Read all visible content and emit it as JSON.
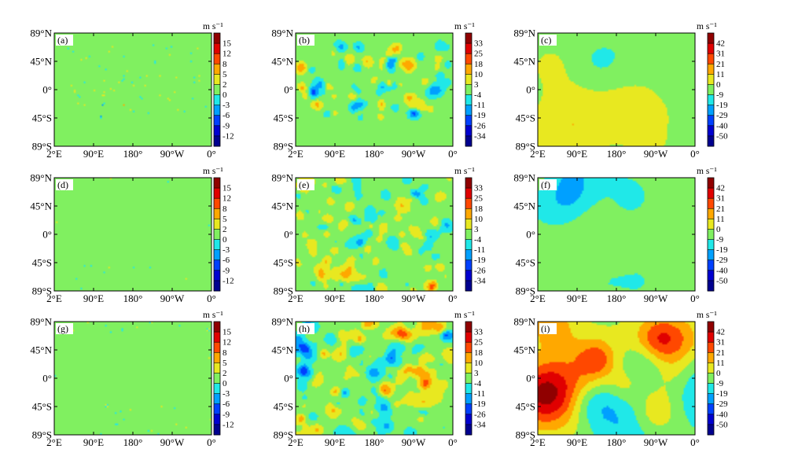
{
  "chart_data": {
    "type": "heatmap",
    "grid": false,
    "x_tick_labels": [
      "2°E",
      "90°E",
      "180°",
      "90°W",
      "0°"
    ],
    "y_tick_labels": [
      "89°N",
      "45°N",
      "0°",
      "45°S",
      "89°S"
    ],
    "colorbar_unit": "m s⁻¹",
    "colorbars": {
      "scale_a": [
        "15",
        "12",
        "8",
        "5",
        "2",
        "0",
        "-3",
        "-6",
        "-9",
        "-12"
      ],
      "scale_b": [
        "33",
        "25",
        "18",
        "10",
        "3",
        "-4",
        "-11",
        "-19",
        "-26",
        "-34"
      ],
      "scale_c": [
        "42",
        "31",
        "21",
        "11",
        "0",
        "-9",
        "-19",
        "-29",
        "-40",
        "-50"
      ]
    },
    "colormap": [
      "#00008f",
      "#0000d0",
      "#0040ff",
      "#00a0ff",
      "#20e8e8",
      "#80f060",
      "#e8e820",
      "#ffa800",
      "#ff4800",
      "#e00000",
      "#900000"
    ],
    "panels": [
      {
        "label": "(a)",
        "colorbar": "scale_a",
        "pattern": "noise",
        "amplitude": 0.32,
        "feature_count": 150,
        "feature_size": 0.13,
        "region": "land",
        "seed": 11
      },
      {
        "label": "(b)",
        "colorbar": "scale_b",
        "pattern": "blobs",
        "amplitude": 0.6,
        "feature_count": 130,
        "feature_size": 0.55,
        "region": "land",
        "seed": 22
      },
      {
        "label": "(c)",
        "colorbar": "scale_c",
        "pattern": "smooth",
        "amplitude": 0.3,
        "feature_count": 14,
        "feature_size": 1.6,
        "region": "all",
        "seed": 33
      },
      {
        "label": "(d)",
        "colorbar": "scale_a",
        "pattern": "noise",
        "amplitude": 0.2,
        "feature_count": 120,
        "feature_size": 0.13,
        "region": "ocean",
        "seed": 44
      },
      {
        "label": "(e)",
        "colorbar": "scale_b",
        "pattern": "blobs",
        "amplitude": 0.6,
        "feature_count": 170,
        "feature_size": 0.6,
        "region": "all",
        "seed": 55
      },
      {
        "label": "(f)",
        "colorbar": "scale_c",
        "pattern": "smooth",
        "amplitude": 0.38,
        "feature_count": 16,
        "feature_size": 1.5,
        "region": "all",
        "seed": 66
      },
      {
        "label": "(g)",
        "colorbar": "scale_a",
        "pattern": "noise",
        "amplitude": 0.22,
        "feature_count": 130,
        "feature_size": 0.13,
        "region": "ocean",
        "seed": 77
      },
      {
        "label": "(h)",
        "colorbar": "scale_b",
        "pattern": "blobs",
        "amplitude": 0.7,
        "feature_count": 150,
        "feature_size": 0.75,
        "region": "all",
        "seed": 88
      },
      {
        "label": "(i)",
        "colorbar": "scale_c",
        "pattern": "smooth",
        "amplitude": 1.0,
        "feature_count": 20,
        "feature_size": 1.7,
        "region": "all",
        "seed": 99
      }
    ]
  }
}
